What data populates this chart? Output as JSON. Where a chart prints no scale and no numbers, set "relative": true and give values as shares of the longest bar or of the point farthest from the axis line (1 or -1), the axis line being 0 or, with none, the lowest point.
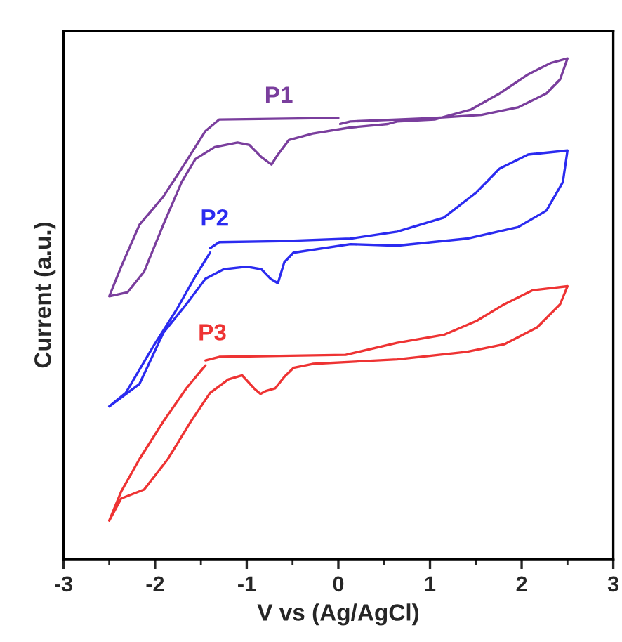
{
  "chart_data": {
    "type": "line",
    "relative": true,
    "xlabel": "V vs (Ag/AgCl)",
    "ylabel": "Current (a.u.)",
    "xlim": [
      -3,
      3
    ],
    "xticks": [
      -3,
      -2,
      -1,
      0,
      1,
      2,
      3
    ],
    "grid": false,
    "legend": false,
    "marker": "none",
    "line_style": "solid",
    "series": [
      {
        "name": "P1",
        "color": "#7a3e9d",
        "x": [
          0.0,
          -1.3,
          -1.45,
          -1.71,
          -1.91,
          -2.17,
          -2.37,
          -2.5,
          -2.3,
          -2.12,
          -1.91,
          -1.71,
          -1.56,
          -1.35,
          -1.1,
          -0.97,
          -0.84,
          -0.73,
          -0.66,
          -0.54,
          -0.28,
          0.13,
          0.54,
          0.64,
          1.05,
          1.45,
          1.76,
          2.07,
          2.32,
          2.5,
          2.42,
          2.27,
          1.96,
          1.56,
          1.05,
          0.64,
          0.13,
          0.02
        ],
        "values": [
          0.881,
          0.878,
          0.855,
          0.78,
          0.724,
          0.668,
          0.584,
          0.525,
          0.533,
          0.574,
          0.668,
          0.753,
          0.799,
          0.823,
          0.832,
          0.827,
          0.803,
          0.788,
          0.808,
          0.837,
          0.85,
          0.862,
          0.869,
          0.874,
          0.878,
          0.898,
          0.93,
          0.968,
          0.991,
          1.0,
          0.958,
          0.93,
          0.902,
          0.887,
          0.881,
          0.878,
          0.874,
          0.869
        ]
      },
      {
        "name": "P2",
        "color": "#2b2bf0",
        "x": [
          -1.4,
          -1.3,
          -0.64,
          0.13,
          0.64,
          1.15,
          1.51,
          1.76,
          2.07,
          2.5,
          2.45,
          2.27,
          1.96,
          1.4,
          0.64,
          0.13,
          -0.49,
          -0.59,
          -0.66,
          -0.74,
          -0.84,
          -1.0,
          -1.25,
          -1.45,
          -1.66,
          -1.91,
          -2.17,
          -2.5,
          -2.32,
          -2.02,
          -1.76,
          -1.56,
          -1.4
        ],
        "values": [
          0.621,
          0.633,
          0.635,
          0.64,
          0.654,
          0.682,
          0.733,
          0.78,
          0.808,
          0.816,
          0.753,
          0.696,
          0.663,
          0.64,
          0.626,
          0.629,
          0.612,
          0.593,
          0.551,
          0.56,
          0.579,
          0.584,
          0.579,
          0.56,
          0.509,
          0.452,
          0.35,
          0.305,
          0.332,
          0.425,
          0.5,
          0.565,
          0.612
        ]
      },
      {
        "name": "P3",
        "color": "#ee3333",
        "x": [
          -1.45,
          -1.3,
          -0.64,
          0.08,
          0.64,
          1.15,
          1.51,
          1.81,
          2.12,
          2.5,
          2.42,
          2.17,
          1.81,
          1.4,
          0.64,
          -0.28,
          -0.49,
          -0.59,
          -0.69,
          -0.79,
          -0.85,
          -0.92,
          -1.05,
          -1.2,
          -1.4,
          -1.61,
          -1.86,
          -2.12,
          -2.37,
          -2.5,
          -2.37,
          -2.17,
          -1.91,
          -1.66,
          -1.45
        ],
        "values": [
          0.397,
          0.404,
          0.406,
          0.408,
          0.432,
          0.448,
          0.476,
          0.509,
          0.537,
          0.545,
          0.509,
          0.463,
          0.429,
          0.414,
          0.399,
          0.39,
          0.382,
          0.364,
          0.341,
          0.336,
          0.33,
          0.341,
          0.367,
          0.359,
          0.332,
          0.275,
          0.2,
          0.139,
          0.121,
          0.077,
          0.135,
          0.2,
          0.275,
          0.341,
          0.387
        ]
      }
    ]
  }
}
